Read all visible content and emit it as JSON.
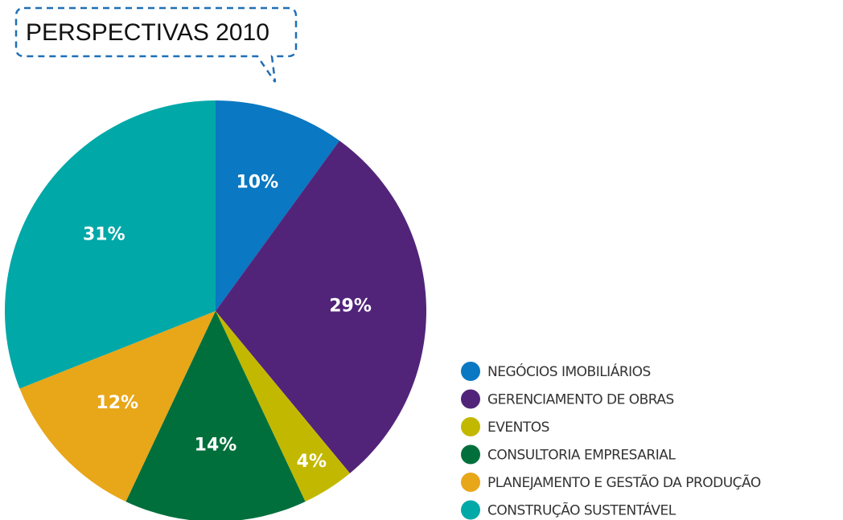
{
  "chart_data": {
    "type": "pie",
    "title": "PERSPECTIVAS 2010",
    "categories": [
      "NEGÓCIOS IMOBILIÁRIOS",
      "GERENCIAMENTO DE OBRAS",
      "EVENTOS",
      "CONSULTORIA EMPRESARIAL",
      "PLANEJAMENTO E GESTÃO DA PRODUÇÃO",
      "CONSTRUÇÃO SUSTENTÁVEL"
    ],
    "values": [
      10,
      29,
      4,
      14,
      12,
      31
    ],
    "value_labels": [
      "10%",
      "29%",
      "4%",
      "14%",
      "12%",
      "31%"
    ],
    "colors": [
      "#0a78c2",
      "#51247a",
      "#c3b800",
      "#006f3c",
      "#e8a619",
      "#00a8a8"
    ]
  }
}
